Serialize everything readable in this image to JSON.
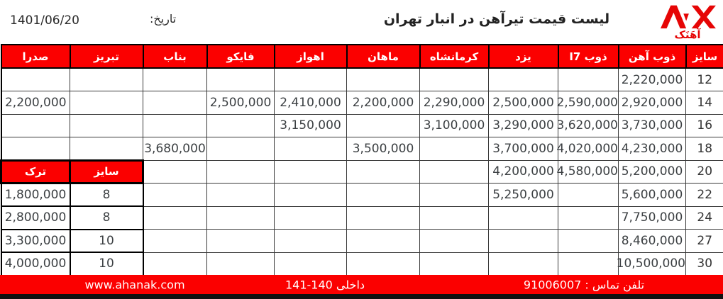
{
  "page": {
    "date_label": "تاریخ:",
    "date_value": "1401/06/20",
    "title": "لیست قیمت تیرآهن در انبار تهران",
    "logo_text": "آهَنَک"
  },
  "table": {
    "columns": [
      "سایز",
      "ذوب آهن",
      "ذوب I7",
      "یزد",
      "کرمانشاه",
      "ماهان",
      "اهواز",
      "فایکو",
      "بناب",
      "تبریز",
      "صدرا"
    ],
    "rows": [
      {
        "size": "12",
        "values": [
          "2,220,000",
          "",
          "",
          "",
          "",
          "",
          "",
          "",
          "",
          ""
        ]
      },
      {
        "size": "14",
        "values": [
          "2,920,000",
          "2,590,000",
          "2,500,000",
          "2,290,000",
          "2,200,000",
          "2,410,000",
          "2,500,000",
          "",
          "",
          "2,200,000"
        ]
      },
      {
        "size": "16",
        "values": [
          "3,730,000",
          "3,620,000",
          "3,290,000",
          "3,100,000",
          "",
          "3,150,000",
          "",
          "",
          "",
          ""
        ]
      },
      {
        "size": "18",
        "values": [
          "4,230,000",
          "4,020,000",
          "3,700,000",
          "",
          "3,500,000",
          "",
          "",
          "3,680,000",
          "",
          ""
        ]
      },
      {
        "size": "20",
        "values": [
          "5,200,000",
          "4,580,000",
          "4,200,000",
          "",
          "",
          "",
          "",
          ""
        ]
      },
      {
        "size": "22",
        "values": [
          "5,600,000",
          "",
          "5,250,000",
          "",
          "",
          "",
          "",
          ""
        ]
      },
      {
        "size": "24",
        "values": [
          "7,750,000",
          "",
          "",
          "",
          "",
          "",
          "",
          ""
        ]
      },
      {
        "size": "27",
        "values": [
          "8,460,000",
          "",
          "",
          "",
          "",
          "",
          "",
          ""
        ]
      },
      {
        "size": "30",
        "values": [
          "10,500,000",
          "",
          "",
          "",
          "",
          "",
          "",
          ""
        ]
      }
    ]
  },
  "nested_table": {
    "turk_label": "ترک",
    "size_label": "سایز",
    "rows": [
      {
        "price": "1,800,000",
        "size": "8"
      },
      {
        "price": "2,800,000",
        "size": "8"
      },
      {
        "price": "3,300,000",
        "size": "10"
      },
      {
        "price": "4,000,000",
        "size": "10"
      }
    ]
  },
  "footer": {
    "website": "www.ahanak.com",
    "extension": "داخلی 140-141",
    "phone": "تلفن تماس : 91006007"
  },
  "colors": {
    "accent_red": "#fb0000",
    "bottom_bar_black": "#101010",
    "value_text": "#3c4043"
  }
}
